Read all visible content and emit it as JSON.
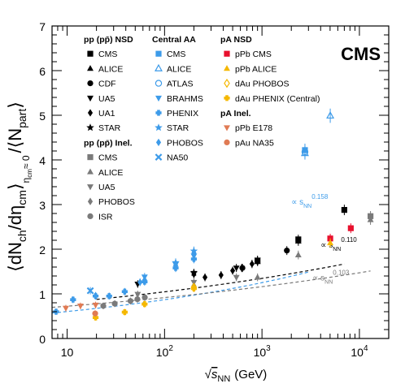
{
  "chart_data": {
    "type": "scatter",
    "badge": "CMS",
    "xlabel_parts": {
      "root": "√",
      "s": "s",
      "sub": "NN",
      "unit": "(GeV)"
    },
    "ylabel_parts": {
      "open": "⟨dN",
      "ch_sub": "ch",
      "mid": "/dη",
      "cm_sub": "cm",
      "close": "⟩",
      "cond": "η",
      "cond_sub": "cm",
      "cond_val": "≈ 0",
      "slash": "/",
      "denom": "⟨N",
      "denom_sub": "part",
      "denom_close": "⟩"
    },
    "x_scale": "log",
    "xlim": [
      7,
      20000
    ],
    "ylim": [
      0,
      7
    ],
    "xticks": [
      {
        "v": 10,
        "base": "10",
        "exp": ""
      },
      {
        "v": 100,
        "base": "10",
        "exp": "2"
      },
      {
        "v": 1000,
        "base": "10",
        "exp": "3"
      },
      {
        "v": 10000,
        "base": "10",
        "exp": "4"
      }
    ],
    "yticks": [
      "0",
      "1",
      "2",
      "3",
      "4",
      "5",
      "6",
      "7"
    ],
    "grid": false,
    "legend_placement": "top-left",
    "legend_groups": [
      {
        "title": "pp (pp̄) NSD",
        "entries": [
          {
            "label": "CMS",
            "marker": "square",
            "color": "#000000"
          },
          {
            "label": "ALICE",
            "marker": "triangle-up",
            "color": "#000000"
          },
          {
            "label": "CDF",
            "marker": "circle",
            "color": "#000000"
          },
          {
            "label": "UA5",
            "marker": "triangle-down",
            "color": "#000000"
          },
          {
            "label": "UA1",
            "marker": "diamond",
            "color": "#000000"
          },
          {
            "label": "STAR",
            "marker": "star",
            "color": "#000000"
          }
        ]
      },
      {
        "title": "pp (pp̄) Inel.",
        "entries": [
          {
            "label": "CMS",
            "marker": "square",
            "color": "#7a7a7a"
          },
          {
            "label": "ALICE",
            "marker": "triangle-up",
            "color": "#7a7a7a"
          },
          {
            "label": "UA5",
            "marker": "triangle-down",
            "color": "#7a7a7a"
          },
          {
            "label": "PHOBOS",
            "marker": "diamond",
            "color": "#7a7a7a"
          },
          {
            "label": "ISR",
            "marker": "circle",
            "color": "#7a7a7a"
          }
        ]
      },
      {
        "title": "Central AA",
        "entries": [
          {
            "label": "CMS",
            "marker": "square",
            "color": "#3d9be9"
          },
          {
            "label": "ALICE",
            "marker": "triangle-up-open",
            "color": "#3d9be9"
          },
          {
            "label": "ATLAS",
            "marker": "circle-open",
            "color": "#3d9be9"
          },
          {
            "label": "BRAHMS",
            "marker": "triangle-down",
            "color": "#3d9be9"
          },
          {
            "label": "PHENIX",
            "marker": "cross",
            "color": "#3d9be9"
          },
          {
            "label": "STAR",
            "marker": "star",
            "color": "#3d9be9"
          },
          {
            "label": "PHOBOS",
            "marker": "diamond",
            "color": "#3d9be9"
          },
          {
            "label": "NA50",
            "marker": "x",
            "color": "#3d9be9"
          }
        ]
      },
      {
        "title": "pA NSD",
        "entries": [
          {
            "label": "pPb CMS",
            "marker": "square",
            "color": "#e8102e"
          },
          {
            "label": "pPb ALICE",
            "marker": "triangle-up",
            "color": "#f5b800"
          },
          {
            "label": "dAu PHOBOS",
            "marker": "diamond-open",
            "color": "#f5b800"
          },
          {
            "label": "dAu PHENIX (Central)",
            "marker": "cross",
            "color": "#f5b800"
          }
        ]
      },
      {
        "title": "pA Inel.",
        "entries": [
          {
            "label": "pPb E178",
            "marker": "triangle-down",
            "color": "#e07b54"
          },
          {
            "label": "pAu NA35",
            "marker": "circle",
            "color": "#e07b54"
          }
        ]
      }
    ],
    "fits": [
      {
        "name": "central AA fit",
        "s_label": "s",
        "sub": "NN",
        "exp": "0.158",
        "color": "#3d9be9",
        "a": 0.42,
        "b": 0.158,
        "x_range": [
          7,
          3100
        ]
      },
      {
        "name": "pp NSD fit",
        "s_label": "s",
        "sub": "NN",
        "exp": "0.110",
        "color": "#000000",
        "a": 0.63,
        "b": 0.11,
        "x_range": [
          20,
          7000
        ]
      },
      {
        "name": "pp inelastic fit",
        "s_label": "s",
        "sub": "NN",
        "exp": "0.103",
        "color": "#7a7a7a",
        "a": 0.57,
        "b": 0.103,
        "x_range": [
          7,
          13000
        ]
      }
    ],
    "fit_label_prefix": "∝",
    "series": [
      {
        "name": "pp NSD CMS",
        "marker": "square",
        "color": "#000000",
        "points": [
          [
            900,
            1.74
          ],
          [
            2360,
            2.22
          ],
          [
            7000,
            2.88
          ]
        ]
      },
      {
        "name": "pp NSD ALICE",
        "marker": "triangle-up",
        "color": "#000000",
        "points": [
          [
            900,
            1.72
          ],
          [
            2360,
            2.18
          ]
        ]
      },
      {
        "name": "pp NSD CDF",
        "marker": "circle",
        "color": "#000000",
        "points": [
          [
            630,
            1.58
          ],
          [
            1800,
            1.97
          ]
        ]
      },
      {
        "name": "pp NSD UA5",
        "marker": "triangle-down",
        "color": "#000000",
        "points": [
          [
            53,
            1.22
          ],
          [
            200,
            1.46
          ],
          [
            546,
            1.58
          ],
          [
            900,
            1.76
          ]
        ]
      },
      {
        "name": "pp NSD UA1",
        "marker": "diamond",
        "color": "#000000",
        "points": [
          [
            200,
            1.44
          ],
          [
            260,
            1.37
          ],
          [
            380,
            1.42
          ],
          [
            500,
            1.52
          ],
          [
            620,
            1.58
          ],
          [
            790,
            1.67
          ],
          [
            900,
            1.72
          ]
        ]
      },
      {
        "name": "pp NSD STAR",
        "marker": "star",
        "color": "#000000",
        "points": [
          [
            200,
            1.47
          ]
        ]
      },
      {
        "name": "pp Inel. CMS",
        "marker": "square",
        "color": "#7a7a7a",
        "points": [
          [
            13000,
            2.74
          ]
        ]
      },
      {
        "name": "pp Inel. ALICE",
        "marker": "triangle-up",
        "color": "#7a7a7a",
        "points": [
          [
            900,
            1.37
          ],
          [
            2360,
            1.87
          ],
          [
            13000,
            2.66
          ]
        ]
      },
      {
        "name": "pp Inel. UA5",
        "marker": "triangle-down",
        "color": "#7a7a7a",
        "points": [
          [
            53,
            0.99
          ],
          [
            200,
            1.26
          ],
          [
            546,
            1.37
          ]
        ]
      },
      {
        "name": "pp Inel. PHOBOS",
        "marker": "diamond",
        "color": "#7a7a7a",
        "points": [
          [
            200,
            1.18
          ]
        ]
      },
      {
        "name": "pp Inel. ISR",
        "marker": "circle",
        "color": "#7a7a7a",
        "points": [
          [
            23.5,
            0.73
          ],
          [
            30.8,
            0.78
          ],
          [
            44.7,
            0.84
          ],
          [
            52.6,
            0.88
          ],
          [
            62.7,
            0.92
          ]
        ]
      },
      {
        "name": "AA CMS",
        "marker": "square",
        "color": "#3d9be9",
        "points": [
          [
            2760,
            4.22
          ]
        ]
      },
      {
        "name": "AA ALICE",
        "marker": "triangle-up-open",
        "color": "#3d9be9",
        "points": [
          [
            2760,
            4.15
          ],
          [
            5020,
            4.99
          ]
        ]
      },
      {
        "name": "AA ATLAS",
        "marker": "circle-open",
        "color": "#3d9be9",
        "points": [
          [
            2760,
            4.18
          ]
        ]
      },
      {
        "name": "AA BRAHMS",
        "marker": "triangle-down",
        "color": "#3d9be9",
        "points": [
          [
            62.4,
            1.38
          ],
          [
            130,
            1.66
          ],
          [
            200,
            1.85
          ]
        ]
      },
      {
        "name": "AA PHENIX",
        "marker": "cross",
        "color": "#3d9be9",
        "points": [
          [
            7.7,
            0.6
          ],
          [
            11.5,
            0.87
          ],
          [
            19.6,
            0.95
          ],
          [
            27,
            0.95
          ],
          [
            39,
            1.05
          ],
          [
            62.4,
            1.27
          ],
          [
            130,
            1.58
          ],
          [
            200,
            1.78
          ]
        ]
      },
      {
        "name": "AA STAR",
        "marker": "star",
        "color": "#3d9be9",
        "points": [
          [
            130,
            1.7
          ],
          [
            200,
            1.96
          ]
        ]
      },
      {
        "name": "AA PHOBOS",
        "marker": "diamond",
        "color": "#3d9be9",
        "points": [
          [
            19.6,
            0.96
          ],
          [
            56,
            1.26
          ],
          [
            62.4,
            1.31
          ],
          [
            130,
            1.63
          ],
          [
            200,
            1.92
          ]
        ]
      },
      {
        "name": "AA NA50",
        "marker": "x",
        "color": "#3d9be9",
        "points": [
          [
            17.3,
            1.07
          ]
        ]
      },
      {
        "name": "pPb CMS",
        "marker": "square",
        "color": "#e8102e",
        "points": [
          [
            5020,
            2.24
          ],
          [
            8160,
            2.47
          ]
        ]
      },
      {
        "name": "pPb ALICE",
        "marker": "triangle-up",
        "color": "#f5b800",
        "points": [
          [
            5020,
            2.14
          ]
        ]
      },
      {
        "name": "dAu PHOBOS",
        "marker": "diamond-open",
        "color": "#f5b800",
        "points": [
          [
            200,
            1.15
          ]
        ]
      },
      {
        "name": "dAu PHENIX (Central)",
        "marker": "cross",
        "color": "#f5b800",
        "points": [
          [
            19.6,
            0.47
          ],
          [
            39,
            0.59
          ],
          [
            62.4,
            0.77
          ],
          [
            200,
            1.12
          ]
        ]
      },
      {
        "name": "pPb E178",
        "marker": "triangle-down",
        "color": "#e07b54",
        "points": [
          [
            9.7,
            0.68
          ],
          [
            13.7,
            0.73
          ],
          [
            19.6,
            0.75
          ]
        ]
      },
      {
        "name": "pAu NA35",
        "marker": "circle",
        "color": "#e07b54",
        "points": [
          [
            19.4,
            0.56
          ]
        ]
      }
    ]
  }
}
